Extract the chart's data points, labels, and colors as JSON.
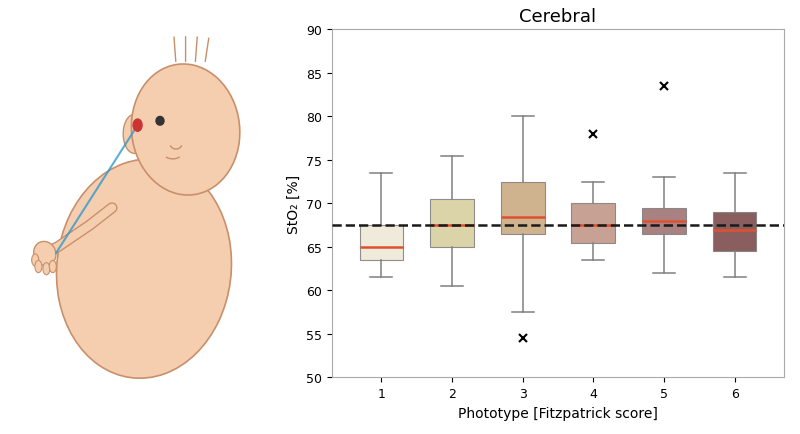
{
  "title": "Cerebral",
  "xlabel": "Phototype [Fitzpatrick score]",
  "ylabel": "StO₂ [%]",
  "ylim": [
    50,
    90
  ],
  "yticks": [
    50,
    55,
    60,
    65,
    70,
    75,
    80,
    85,
    90
  ],
  "categories": [
    1,
    2,
    3,
    4,
    5,
    6
  ],
  "box_colors": [
    "#ede8d5",
    "#d8cf9d",
    "#c8a97e",
    "#c09585",
    "#9e7070",
    "#7a4848"
  ],
  "median_color": "#e05030",
  "whisker_color": "#808080",
  "box_edge_color": "#808080",
  "dashed_line_y": 67.5,
  "dashed_line_color": "#1a1a1a",
  "boxes": [
    {
      "q1": 63.5,
      "median": 65.0,
      "q3": 67.5,
      "whislo": 61.5,
      "whishi": 73.5,
      "fliers": []
    },
    {
      "q1": 65.0,
      "median": 67.5,
      "q3": 70.5,
      "whislo": 60.5,
      "whishi": 75.5,
      "fliers": []
    },
    {
      "q1": 66.5,
      "median": 68.5,
      "q3": 72.5,
      "whislo": 57.5,
      "whishi": 80.0,
      "fliers": [
        54.5
      ]
    },
    {
      "q1": 65.5,
      "median": 67.5,
      "q3": 70.0,
      "whislo": 63.5,
      "whishi": 72.5,
      "fliers": [
        78.0
      ]
    },
    {
      "q1": 66.5,
      "median": 68.0,
      "q3": 69.5,
      "whislo": 62.0,
      "whishi": 73.0,
      "fliers": [
        83.5
      ]
    },
    {
      "q1": 64.5,
      "median": 67.0,
      "q3": 69.0,
      "whislo": 61.5,
      "whishi": 73.5,
      "fliers": []
    }
  ],
  "figsize": [
    8.0,
    4.35
  ],
  "dpi": 100,
  "title_fontsize": 13,
  "label_fontsize": 10,
  "tick_fontsize": 9,
  "skin_color": "#f5ceb0",
  "skin_edge": "#c8906a",
  "eye_color": "#333333",
  "laser_color": "#3399cc",
  "dot_color": "#cc3333"
}
